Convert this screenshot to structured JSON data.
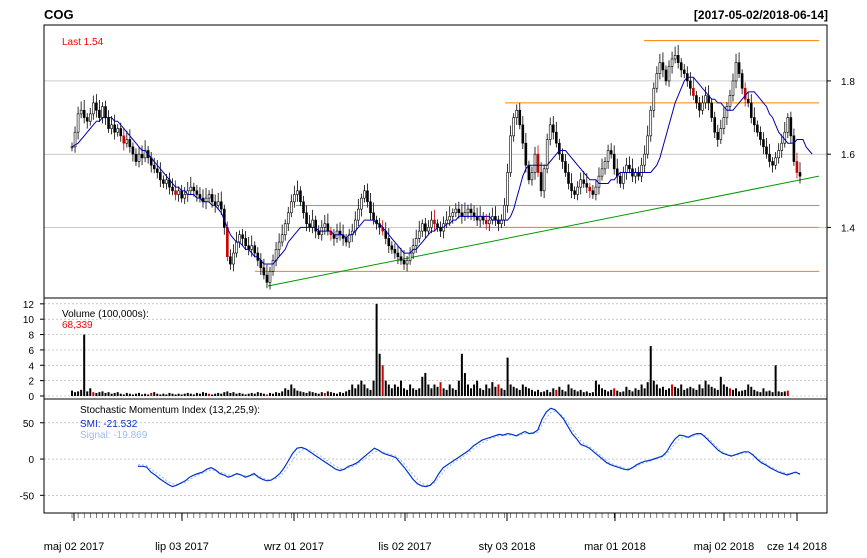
{
  "header": {
    "symbol": "COG",
    "date_range": "[2017-05-02/2018-06-14]"
  },
  "colors": {
    "background": "#ffffff",
    "frame": "#000000",
    "grid": "#aaaaaa",
    "candle": "#000000",
    "down_candle": "#cc0000",
    "ma": "#0000aa",
    "resistance": "#ff8000",
    "trend": "#009900",
    "last_label": "#ff0000",
    "volume_label": "#ff0000",
    "smi": "#0033cc",
    "signal": "#99bbee"
  },
  "chart_data": [
    {
      "type": "candlestick",
      "title": "COG",
      "subtitle": "[2017-05-02/2018-06-14]",
      "last_label": "Last 1.54",
      "ylim": [
        1.21,
        1.95
      ],
      "yticks": [
        "1.4",
        "1.6",
        "1.8"
      ],
      "xticks": [
        "maj 02 2017",
        "lip 03 2017",
        "wrz 01 2017",
        "lis 02 2017",
        "sty 03 2018",
        "mar 01 2018",
        "maj 02 2018",
        "cze 14 2018"
      ],
      "series": [
        {
          "values": [
            1.62,
            1.66,
            1.71,
            1.72,
            1.7,
            1.69,
            1.71,
            1.74,
            1.72,
            1.7,
            1.73,
            1.7,
            1.67,
            1.68,
            1.66,
            1.67,
            1.65,
            1.63,
            1.64,
            1.62,
            1.6,
            1.58,
            1.6,
            1.59,
            1.61,
            1.59,
            1.57,
            1.56,
            1.55,
            1.53,
            1.52,
            1.53,
            1.51,
            1.5,
            1.49,
            1.5,
            1.48,
            1.49,
            1.5,
            1.51,
            1.5,
            1.49,
            1.48,
            1.47,
            1.48,
            1.49,
            1.47,
            1.46,
            1.47,
            1.45,
            1.4,
            1.32,
            1.3,
            1.33,
            1.36,
            1.38,
            1.37,
            1.35,
            1.34,
            1.35,
            1.33,
            1.31,
            1.29,
            1.27,
            1.25,
            1.28,
            1.31,
            1.34,
            1.36,
            1.38,
            1.41,
            1.44,
            1.47,
            1.49,
            1.5,
            1.47,
            1.44,
            1.41,
            1.4,
            1.42,
            1.39,
            1.38,
            1.4,
            1.41,
            1.39,
            1.38,
            1.37,
            1.39,
            1.38,
            1.37,
            1.36,
            1.38,
            1.39,
            1.42,
            1.45,
            1.48,
            1.5,
            1.47,
            1.44,
            1.42,
            1.41,
            1.4,
            1.39,
            1.37,
            1.35,
            1.34,
            1.33,
            1.32,
            1.31,
            1.3,
            1.31,
            1.33,
            1.35,
            1.37,
            1.39,
            1.41,
            1.39,
            1.4,
            1.42,
            1.41,
            1.4,
            1.39,
            1.41,
            1.42,
            1.43,
            1.44,
            1.45,
            1.44,
            1.43,
            1.44,
            1.45,
            1.44,
            1.43,
            1.42,
            1.43,
            1.42,
            1.41,
            1.42,
            1.43,
            1.42,
            1.41,
            1.42,
            1.46,
            1.55,
            1.65,
            1.7,
            1.72,
            1.68,
            1.63,
            1.57,
            1.53,
            1.55,
            1.6,
            1.55,
            1.5,
            1.56,
            1.64,
            1.68,
            1.66,
            1.63,
            1.6,
            1.58,
            1.55,
            1.52,
            1.5,
            1.49,
            1.51,
            1.53,
            1.52,
            1.51,
            1.5,
            1.49,
            1.51,
            1.54,
            1.56,
            1.58,
            1.61,
            1.6,
            1.56,
            1.54,
            1.52,
            1.55,
            1.57,
            1.56,
            1.54,
            1.55,
            1.54,
            1.57,
            1.6,
            1.65,
            1.72,
            1.78,
            1.82,
            1.85,
            1.83,
            1.8,
            1.84,
            1.86,
            1.87,
            1.85,
            1.83,
            1.82,
            1.8,
            1.78,
            1.76,
            1.74,
            1.72,
            1.74,
            1.76,
            1.74,
            1.7,
            1.66,
            1.64,
            1.67,
            1.7,
            1.73,
            1.76,
            1.8,
            1.85,
            1.82,
            1.78,
            1.75,
            1.74,
            1.7,
            1.68,
            1.66,
            1.64,
            1.62,
            1.6,
            1.58,
            1.57,
            1.59,
            1.61,
            1.63,
            1.66,
            1.7,
            1.65,
            1.58,
            1.55,
            1.54
          ]
        },
        {
          "name": "MA",
          "values": [
            1.62,
            1.625,
            1.63,
            1.64,
            1.65,
            1.66,
            1.67,
            1.68,
            1.69,
            1.69,
            1.7,
            1.7,
            1.7,
            1.7,
            1.69,
            1.69,
            1.68,
            1.67,
            1.66,
            1.65,
            1.64,
            1.63,
            1.62,
            1.61,
            1.61,
            1.6,
            1.59,
            1.58,
            1.57,
            1.56,
            1.55,
            1.54,
            1.53,
            1.52,
            1.51,
            1.51,
            1.5,
            1.5,
            1.49,
            1.49,
            1.49,
            1.48,
            1.48,
            1.47,
            1.47,
            1.47,
            1.46,
            1.46,
            1.45,
            1.44,
            1.42,
            1.4,
            1.38,
            1.37,
            1.36,
            1.36,
            1.35,
            1.34,
            1.34,
            1.33,
            1.32,
            1.32,
            1.31,
            1.3,
            1.3,
            1.3,
            1.3,
            1.31,
            1.32,
            1.33,
            1.34,
            1.36,
            1.37,
            1.38,
            1.39,
            1.4,
            1.4,
            1.4,
            1.4,
            1.4,
            1.4,
            1.39,
            1.39,
            1.39,
            1.39,
            1.39,
            1.38,
            1.38,
            1.38,
            1.38,
            1.37,
            1.38,
            1.38,
            1.39,
            1.4,
            1.41,
            1.42,
            1.42,
            1.42,
            1.42,
            1.41,
            1.41,
            1.4,
            1.39,
            1.38,
            1.37,
            1.36,
            1.35,
            1.34,
            1.33,
            1.33,
            1.33,
            1.34,
            1.34,
            1.35,
            1.36,
            1.37,
            1.38,
            1.39,
            1.39,
            1.4,
            1.4,
            1.4,
            1.41,
            1.41,
            1.42,
            1.42,
            1.43,
            1.43,
            1.43,
            1.43,
            1.43,
            1.43,
            1.43,
            1.43,
            1.43,
            1.43,
            1.43,
            1.42,
            1.42,
            1.42,
            1.42,
            1.42,
            1.42,
            1.43,
            1.45,
            1.48,
            1.51,
            1.54,
            1.56,
            1.57,
            1.57,
            1.57,
            1.57,
            1.57,
            1.57,
            1.57,
            1.58,
            1.59,
            1.6,
            1.61,
            1.61,
            1.61,
            1.6,
            1.59,
            1.58,
            1.57,
            1.56,
            1.55,
            1.54,
            1.53,
            1.53,
            1.53,
            1.52,
            1.52,
            1.52,
            1.52,
            1.53,
            1.53,
            1.54,
            1.55,
            1.55,
            1.55,
            1.55,
            1.55,
            1.55,
            1.55,
            1.55,
            1.55,
            1.55,
            1.55,
            1.56,
            1.57,
            1.59,
            1.62,
            1.65,
            1.68,
            1.71,
            1.74,
            1.76,
            1.78,
            1.8,
            1.81,
            1.81,
            1.81,
            1.8,
            1.79,
            1.78,
            1.77,
            1.76,
            1.75,
            1.75,
            1.74,
            1.74,
            1.73,
            1.72,
            1.72,
            1.72,
            1.73,
            1.74,
            1.75,
            1.76,
            1.77,
            1.77,
            1.77,
            1.76,
            1.75,
            1.74,
            1.73,
            1.71,
            1.7,
            1.68,
            1.66,
            1.65,
            1.64,
            1.63,
            1.63,
            1.63,
            1.64,
            1.64,
            1.64,
            1.62,
            1.61,
            1.6
          ]
        }
      ],
      "resistance_levels": [
        1.91,
        1.74,
        1.46,
        1.4,
        1.28
      ],
      "trendline": {
        "from": 1.24,
        "to": 1.54
      }
    },
    {
      "type": "bar",
      "title": "Volume (100,000s):",
      "last_value": "68,339",
      "ylim": [
        0,
        12.5
      ],
      "yticks": [
        "0",
        "2",
        "4",
        "6",
        "8",
        "10",
        "12"
      ],
      "values": [
        0.7,
        0.5,
        0.6,
        0.8,
        8.0,
        0.6,
        1.0,
        0.5,
        0.4,
        0.5,
        0.6,
        0.4,
        0.5,
        0.3,
        0.4,
        0.5,
        0.3,
        0.2,
        0.4,
        0.3,
        0.2,
        0.3,
        0.4,
        0.2,
        0.3,
        0.2,
        0.4,
        0.5,
        0.3,
        0.2,
        0.3,
        0.2,
        0.4,
        0.3,
        0.2,
        0.3,
        0.2,
        0.3,
        0.4,
        0.3,
        0.2,
        0.4,
        0.3,
        0.5,
        0.4,
        0.3,
        0.2,
        0.3,
        0.4,
        0.3,
        0.5,
        0.6,
        0.4,
        0.5,
        0.3,
        0.4,
        0.3,
        0.2,
        0.3,
        0.4,
        0.3,
        0.5,
        0.4,
        0.3,
        0.2,
        0.4,
        0.3,
        0.5,
        0.4,
        0.6,
        1.0,
        0.8,
        1.5,
        1.0,
        0.7,
        0.6,
        0.5,
        0.4,
        0.6,
        0.5,
        0.4,
        0.3,
        0.5,
        0.4,
        0.6,
        0.5,
        0.4,
        0.3,
        0.5,
        0.4,
        0.6,
        0.8,
        1.5,
        1.0,
        1.5,
        2.0,
        1.5,
        1.0,
        0.8,
        2.0,
        12.0,
        5.5,
        4.0,
        2.0,
        1.5,
        1.0,
        1.5,
        1.2,
        2.0,
        1.0,
        0.8,
        1.5,
        1.0,
        0.8,
        1.0,
        2.5,
        3.0,
        1.5,
        1.0,
        1.5,
        1.2,
        1.8,
        1.0,
        0.8,
        1.5,
        1.0,
        0.8,
        2.0,
        5.5,
        3.0,
        1.5,
        1.0,
        1.5,
        2.0,
        1.0,
        0.8,
        1.5,
        1.0,
        1.8,
        1.2,
        1.5,
        1.0,
        0.8,
        5.0,
        1.5,
        1.2,
        1.0,
        0.8,
        1.5,
        1.2,
        1.0,
        0.8,
        0.6,
        0.8,
        0.5,
        0.6,
        0.8,
        0.5,
        1.0,
        0.8,
        1.2,
        0.8,
        0.6,
        1.5,
        1.0,
        0.8,
        0.6,
        0.8,
        0.5,
        0.6,
        0.4,
        0.5,
        2.0,
        1.5,
        1.0,
        0.8,
        0.6,
        0.8,
        1.0,
        0.7,
        0.5,
        0.6,
        1.2,
        0.8,
        0.6,
        1.0,
        0.8,
        1.5,
        1.0,
        1.8,
        6.5,
        2.0,
        1.5,
        1.0,
        1.2,
        0.8,
        1.0,
        1.5,
        1.2,
        1.0,
        1.5,
        0.8,
        1.0,
        1.2,
        1.0,
        0.8,
        1.5,
        1.0,
        2.0,
        1.5,
        1.2,
        1.0,
        0.8,
        2.5,
        1.5,
        1.2,
        1.0,
        0.8,
        1.0,
        0.6,
        0.7,
        0.8,
        1.5,
        1.2,
        0.8,
        0.6,
        0.5,
        1.0,
        0.6,
        0.7,
        0.5,
        4.0,
        0.6,
        0.5,
        0.6,
        0.7
      ]
    },
    {
      "type": "line",
      "title": "Stochastic Momentum Index (13,2,25,9):",
      "ylim": [
        -73,
        80
      ],
      "yticks": [
        "-50",
        "0",
        "50"
      ],
      "series": [
        {
          "name": "SMI: -21.532",
          "values": [
            -10,
            -10,
            -11,
            -18,
            -22,
            -27,
            -31,
            -35,
            -38,
            -36,
            -33,
            -30,
            -25,
            -22,
            -20,
            -18,
            -14,
            -12,
            -15,
            -20,
            -22,
            -25,
            -23,
            -20,
            -22,
            -25,
            -23,
            -20,
            -25,
            -28,
            -30,
            -29,
            -25,
            -20,
            -12,
            -2,
            8,
            15,
            16,
            14,
            10,
            6,
            2,
            -2,
            -6,
            -10,
            -14,
            -16,
            -14,
            -10,
            -8,
            -5,
            0,
            5,
            10,
            15,
            12,
            8,
            6,
            4,
            2,
            -5,
            -12,
            -20,
            -28,
            -34,
            -37,
            -38,
            -36,
            -30,
            -20,
            -12,
            -8,
            -4,
            0,
            4,
            8,
            12,
            18,
            22,
            26,
            28,
            30,
            32,
            34,
            33,
            35,
            34,
            32,
            35,
            38,
            35,
            36,
            40,
            55,
            65,
            70,
            68,
            62,
            55,
            45,
            35,
            28,
            20,
            18,
            15,
            10,
            5,
            0,
            -5,
            -8,
            -10,
            -12,
            -14,
            -15,
            -12,
            -8,
            -5,
            -3,
            -2,
            0,
            2,
            4,
            10,
            20,
            28,
            33,
            32,
            30,
            33,
            35,
            35,
            30,
            24,
            18,
            12,
            8,
            6,
            4,
            6,
            8,
            10,
            10,
            6,
            0,
            -5,
            -8,
            -12,
            -15,
            -18,
            -20,
            -22,
            -20,
            -18,
            -21
          ]
        },
        {
          "name": "Signal: -19.869",
          "values": [
            -8,
            -8,
            -9,
            -14,
            -18,
            -22,
            -27,
            -31,
            -34,
            -35,
            -34,
            -32,
            -28,
            -25,
            -22,
            -20,
            -17,
            -15,
            -16,
            -18,
            -20,
            -22,
            -22,
            -21,
            -22,
            -23,
            -23,
            -22,
            -23,
            -26,
            -28,
            -28,
            -27,
            -24,
            -18,
            -10,
            -1,
            7,
            12,
            14,
            13,
            10,
            6,
            2,
            -2,
            -6,
            -10,
            -13,
            -14,
            -12,
            -10,
            -7,
            -3,
            1,
            5,
            10,
            11,
            10,
            8,
            6,
            4,
            -1,
            -7,
            -14,
            -21,
            -28,
            -33,
            -36,
            -36,
            -33,
            -26,
            -18,
            -12,
            -7,
            -3,
            1,
            5,
            9,
            14,
            18,
            22,
            25,
            28,
            30,
            32,
            32,
            33,
            33,
            32,
            33,
            35,
            35,
            35,
            37,
            47,
            57,
            64,
            66,
            63,
            58,
            50,
            41,
            33,
            25,
            20,
            17,
            13,
            8,
            3,
            -2,
            -6,
            -8,
            -10,
            -12,
            -13,
            -12,
            -10,
            -7,
            -5,
            -3,
            -1,
            1,
            3,
            7,
            14,
            22,
            28,
            30,
            30,
            31,
            33,
            34,
            32,
            27,
            21,
            15,
            10,
            7,
            5,
            5,
            7,
            8,
            9,
            7,
            2,
            -3,
            -6,
            -10,
            -13,
            -16,
            -18,
            -20,
            -20,
            -19,
            -20
          ]
        }
      ]
    }
  ]
}
